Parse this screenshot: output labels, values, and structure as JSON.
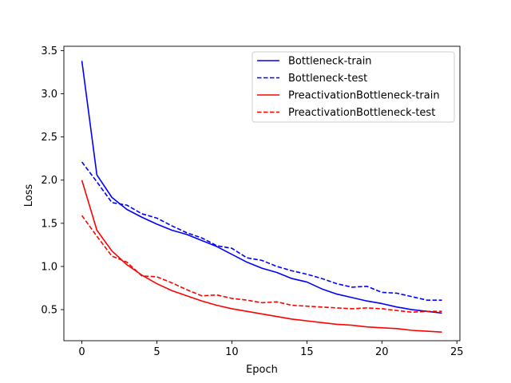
{
  "chart_data": {
    "type": "line",
    "title": "",
    "xlabel": "Epoch",
    "ylabel": "Loss",
    "xlim": [
      -1.2,
      25.2
    ],
    "ylim": [
      0.14,
      3.55
    ],
    "xticks": [
      0,
      5,
      10,
      15,
      20,
      25
    ],
    "yticks": [
      0.5,
      1.0,
      1.5,
      2.0,
      2.5,
      3.0,
      3.5
    ],
    "xtick_labels": [
      "0",
      "5",
      "10",
      "15",
      "20",
      "25"
    ],
    "ytick_labels": [
      "0.5",
      "1.0",
      "1.5",
      "2.0",
      "2.5",
      "3.0",
      "3.5"
    ],
    "grid": false,
    "legend_position": "top-right",
    "x": [
      0,
      1,
      2,
      3,
      4,
      5,
      6,
      7,
      8,
      9,
      10,
      11,
      12,
      13,
      14,
      15,
      16,
      17,
      18,
      19,
      20,
      21,
      22,
      23,
      24
    ],
    "series": [
      {
        "name": "Bottleneck-train",
        "color": "#0000ff",
        "style": "solid",
        "values": [
          3.38,
          2.06,
          1.8,
          1.66,
          1.57,
          1.49,
          1.42,
          1.37,
          1.3,
          1.23,
          1.14,
          1.05,
          0.98,
          0.93,
          0.86,
          0.82,
          0.74,
          0.68,
          0.64,
          0.6,
          0.57,
          0.53,
          0.5,
          0.48,
          0.46
        ]
      },
      {
        "name": "Bottleneck-test",
        "color": "#0000ff",
        "style": "dashed",
        "values": [
          2.21,
          1.98,
          1.74,
          1.71,
          1.61,
          1.56,
          1.47,
          1.39,
          1.33,
          1.24,
          1.21,
          1.1,
          1.07,
          1.0,
          0.95,
          0.91,
          0.86,
          0.8,
          0.76,
          0.77,
          0.7,
          0.69,
          0.65,
          0.61,
          0.61
        ]
      },
      {
        "name": "PreactivationBottleneck-train",
        "color": "#ff0000",
        "style": "solid",
        "values": [
          2.0,
          1.42,
          1.18,
          1.02,
          0.9,
          0.8,
          0.72,
          0.66,
          0.6,
          0.55,
          0.51,
          0.48,
          0.45,
          0.42,
          0.39,
          0.37,
          0.35,
          0.33,
          0.32,
          0.3,
          0.29,
          0.28,
          0.26,
          0.25,
          0.24
        ]
      },
      {
        "name": "PreactivationBottleneck-test",
        "color": "#ff0000",
        "style": "dashed",
        "values": [
          1.59,
          1.35,
          1.12,
          1.05,
          0.89,
          0.88,
          0.81,
          0.73,
          0.66,
          0.67,
          0.63,
          0.61,
          0.58,
          0.59,
          0.55,
          0.54,
          0.53,
          0.52,
          0.51,
          0.52,
          0.51,
          0.49,
          0.47,
          0.48,
          0.48
        ]
      }
    ]
  }
}
